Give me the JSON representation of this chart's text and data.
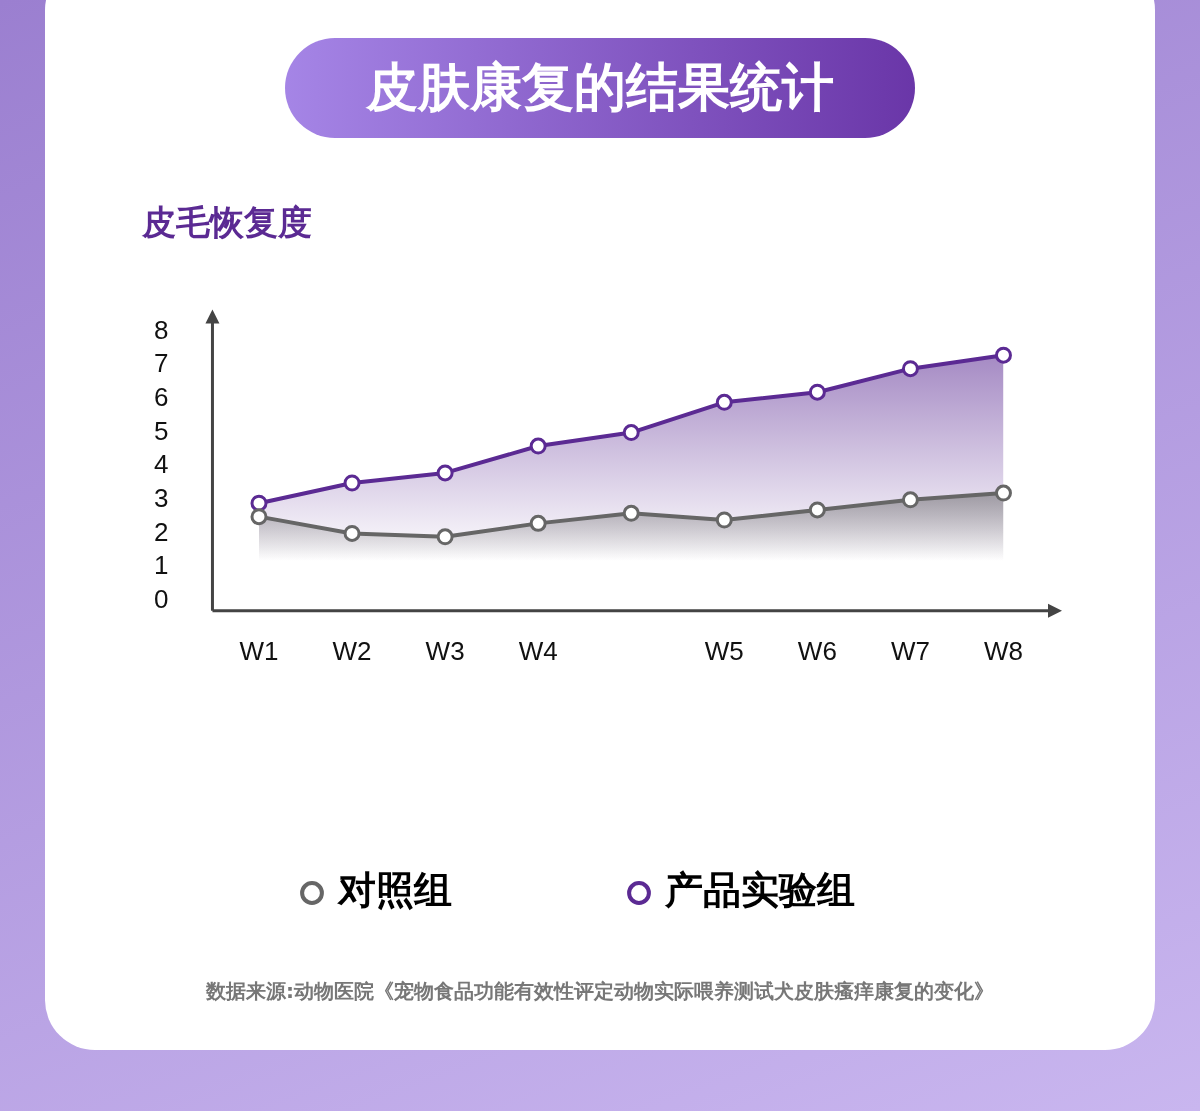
{
  "chart_data": {
    "type": "area",
    "title": "皮肤康复的结果统计",
    "ylabel": "皮毛恢复度",
    "categories": [
      "W1",
      "W2",
      "W3",
      "W4",
      null,
      "W5",
      "W6",
      "W7",
      "W8"
    ],
    "ylim": [
      -0.3,
      8.3
    ],
    "yticks": [
      0,
      1,
      2,
      3,
      4,
      5,
      6,
      7,
      8
    ],
    "series": [
      {
        "name": "对照组",
        "color": "#666666",
        "values": [
          2.5,
          2.0,
          1.9,
          2.3,
          2.6,
          2.4,
          2.7,
          3.0,
          3.2
        ]
      },
      {
        "name": "产品实验组",
        "color": "#5b2a93",
        "values": [
          2.9,
          3.5,
          3.8,
          4.6,
          5.0,
          5.9,
          6.2,
          6.9,
          7.3
        ]
      }
    ],
    "grid": false,
    "legend": "bottom",
    "marker": "circle",
    "line_style": "solid",
    "annotations": [
      "数据来源:动物医院《宠物食品功能有效性评定动物实际喂养测试犬皮肤瘙痒康复的变化》"
    ]
  }
}
